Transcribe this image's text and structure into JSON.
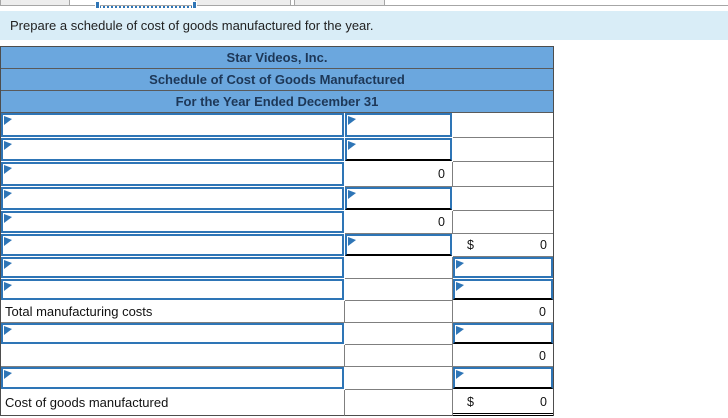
{
  "instruction": "Prepare a schedule of cost of goods manufactured for the year.",
  "schedule": {
    "company": "Star Videos, Inc.",
    "title": "Schedule of Cost of Goods Manufactured",
    "period": "For the Year Ended December 31",
    "rows": [
      {},
      {},
      {
        "mid_value": "0"
      },
      {},
      {
        "mid_value": "0"
      },
      {
        "right_dollar": "$",
        "right_value": "0"
      },
      {},
      {},
      {
        "label": "Total manufacturing costs",
        "right_value": "0"
      },
      {},
      {
        "right_value": "0"
      },
      {},
      {
        "label": "Cost of goods manufactured",
        "right_dollar": "$",
        "right_value": "0"
      }
    ]
  },
  "colors": {
    "header_fill": "#6ba7de",
    "header_text": "#1d3757",
    "banner_bg": "#d9edf7",
    "input_border": "#2e75b6"
  }
}
